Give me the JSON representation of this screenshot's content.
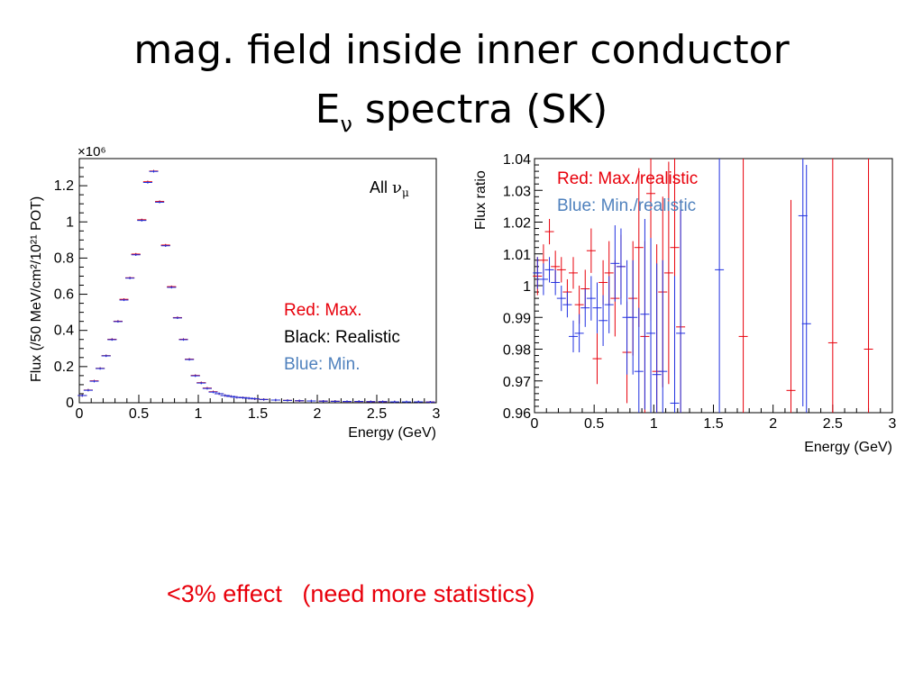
{
  "slide": {
    "title_line1": "mag. field inside inner conductor",
    "title_line2_main": "E",
    "title_line2_sub": "ν",
    "title_line2_rest": " spectra (SK)",
    "bottom_note": "<3% effect   (need more statistics)"
  },
  "colors": {
    "red": "#e8000b",
    "blue": "#1f2fe0",
    "black": "#000000",
    "lightblue": "#4f81bd"
  },
  "chart_data": [
    {
      "type": "scatter",
      "title": "",
      "xlabel": "Energy (GeV)",
      "ylabel": "Flux (/50 MeV/cm²/10²¹ POT)",
      "y_multiplier": "×10⁶",
      "xlim": [
        0,
        3
      ],
      "ylim": [
        0,
        1.35
      ],
      "xticks": [
        "0",
        "0.5",
        "1",
        "1.5",
        "2",
        "2.5",
        "3"
      ],
      "yticks": [
        "0",
        "0.2",
        "0.4",
        "0.6",
        "0.8",
        "1",
        "1.2"
      ],
      "annotation_main": "All",
      "annotation_greek": "ν",
      "annotation_sub": "μ",
      "legend": [
        {
          "text": "Red: Max.",
          "color": "red"
        },
        {
          "text": "Black: Realistic",
          "color": "black"
        },
        {
          "text": "Blue: Min.",
          "color": "lightblue"
        }
      ],
      "x": [
        0.025,
        0.075,
        0.125,
        0.175,
        0.225,
        0.275,
        0.325,
        0.375,
        0.425,
        0.475,
        0.525,
        0.575,
        0.625,
        0.675,
        0.725,
        0.775,
        0.825,
        0.875,
        0.925,
        0.975,
        1.025,
        1.075,
        1.125,
        1.175,
        1.225,
        1.275,
        1.325,
        1.375,
        1.425,
        1.475,
        1.55,
        1.65,
        1.75,
        1.85,
        1.95,
        2.05,
        2.15,
        2.25,
        2.35,
        2.45,
        2.55,
        2.65,
        2.75,
        2.85,
        2.95
      ],
      "series": [
        {
          "name": "Realistic",
          "color": "black",
          "values": [
            0.04,
            0.07,
            0.12,
            0.19,
            0.26,
            0.35,
            0.45,
            0.57,
            0.69,
            0.82,
            1.01,
            1.22,
            1.28,
            1.11,
            0.87,
            0.64,
            0.47,
            0.35,
            0.24,
            0.15,
            0.11,
            0.08,
            0.06,
            0.05,
            0.04,
            0.035,
            0.03,
            0.028,
            0.025,
            0.022,
            0.018,
            0.015,
            0.013,
            0.011,
            0.01,
            0.009,
            0.008,
            0.007,
            0.007,
            0.006,
            0.006,
            0.005,
            0.005,
            0.005,
            0.004
          ]
        },
        {
          "name": "Max.",
          "color": "red",
          "values": [
            0.04,
            0.07,
            0.121,
            0.19,
            0.26,
            0.351,
            0.451,
            0.572,
            0.691,
            0.822,
            1.012,
            1.222,
            1.281,
            1.113,
            0.872,
            0.642,
            0.471,
            0.351,
            0.241,
            0.151,
            0.111,
            0.081,
            0.061,
            0.05,
            0.04,
            0.035,
            0.03,
            0.028,
            0.025,
            0.022,
            0.018,
            0.015,
            0.013,
            0.011,
            0.01,
            0.009,
            0.008,
            0.007,
            0.007,
            0.006,
            0.006,
            0.005,
            0.005,
            0.005,
            0.004
          ]
        },
        {
          "name": "Min.",
          "color": "blue",
          "values": [
            0.04,
            0.069,
            0.119,
            0.189,
            0.259,
            0.349,
            0.449,
            0.568,
            0.689,
            0.818,
            1.008,
            1.218,
            1.279,
            1.109,
            0.868,
            0.638,
            0.469,
            0.349,
            0.239,
            0.149,
            0.109,
            0.079,
            0.059,
            0.05,
            0.04,
            0.035,
            0.03,
            0.028,
            0.025,
            0.022,
            0.018,
            0.015,
            0.013,
            0.011,
            0.01,
            0.009,
            0.008,
            0.007,
            0.007,
            0.006,
            0.006,
            0.005,
            0.005,
            0.005,
            0.004
          ]
        }
      ]
    },
    {
      "type": "scatter",
      "title": "",
      "xlabel": "Energy (GeV)",
      "ylabel": "Flux ratio",
      "xlim": [
        0,
        3
      ],
      "ylim": [
        0.96,
        1.04
      ],
      "xticks": [
        "0",
        "0.5",
        "1",
        "1.5",
        "2",
        "2.5",
        "3"
      ],
      "yticks": [
        "0.96",
        "0.97",
        "0.98",
        "0.99",
        "1",
        "1.01",
        "1.02",
        "1.03",
        "1.04"
      ],
      "legend": [
        {
          "text": "Red: Max./realistic",
          "color": "red"
        },
        {
          "text": "Blue: Min./realistic",
          "color": "lightblue"
        }
      ],
      "series": [
        {
          "name": "Max./realistic",
          "color": "red",
          "points": [
            {
              "x": 0.025,
              "y": 1.003,
              "err": 0.006
            },
            {
              "x": 0.075,
              "y": 1.008,
              "err": 0.005
            },
            {
              "x": 0.125,
              "y": 1.017,
              "err": 0.004
            },
            {
              "x": 0.175,
              "y": 1.006,
              "err": 0.005
            },
            {
              "x": 0.225,
              "y": 1.005,
              "err": 0.004
            },
            {
              "x": 0.275,
              "y": 0.998,
              "err": 0.004
            },
            {
              "x": 0.325,
              "y": 1.004,
              "err": 0.005
            },
            {
              "x": 0.375,
              "y": 0.994,
              "err": 0.006
            },
            {
              "x": 0.425,
              "y": 0.999,
              "err": 0.006
            },
            {
              "x": 0.475,
              "y": 1.011,
              "err": 0.007
            },
            {
              "x": 0.525,
              "y": 0.977,
              "err": 0.008
            },
            {
              "x": 0.575,
              "y": 1.001,
              "err": 0.007
            },
            {
              "x": 0.625,
              "y": 1.004,
              "err": 0.01
            },
            {
              "x": 0.675,
              "y": 0.996,
              "err": 0.012
            },
            {
              "x": 0.725,
              "y": 1.006,
              "err": 0.01
            },
            {
              "x": 0.775,
              "y": 0.979,
              "err": 0.016
            },
            {
              "x": 0.825,
              "y": 0.996,
              "err": 0.018
            },
            {
              "x": 0.875,
              "y": 1.012,
              "err": 0.025
            },
            {
              "x": 0.925,
              "y": 0.984,
              "err": 0.03
            },
            {
              "x": 0.975,
              "y": 1.029,
              "err": 0.04
            },
            {
              "x": 1.025,
              "y": 0.973,
              "err": 0.04
            },
            {
              "x": 1.075,
              "y": 0.998,
              "err": 0.03
            },
            {
              "x": 1.125,
              "y": 1.004,
              "err": 0.035
            },
            {
              "x": 1.175,
              "y": 1.012,
              "err": 0.04
            },
            {
              "x": 1.225,
              "y": 0.987,
              "err": 0.04
            },
            {
              "x": 1.75,
              "y": 0.984,
              "err": 0.06
            },
            {
              "x": 2.15,
              "y": 0.967,
              "err": 0.06
            },
            {
              "x": 2.5,
              "y": 0.982,
              "err": 0.07
            },
            {
              "x": 2.8,
              "y": 0.98,
              "err": 0.07
            }
          ]
        },
        {
          "name": "Min./realistic",
          "color": "blue",
          "points": [
            {
              "x": 0.025,
              "y": 1.004,
              "err": 0.005
            },
            {
              "x": 0.075,
              "y": 1.002,
              "err": 0.005
            },
            {
              "x": 0.125,
              "y": 1.005,
              "err": 0.004
            },
            {
              "x": 0.175,
              "y": 1.001,
              "err": 0.004
            },
            {
              "x": 0.225,
              "y": 0.996,
              "err": 0.004
            },
            {
              "x": 0.275,
              "y": 0.994,
              "err": 0.004
            },
            {
              "x": 0.325,
              "y": 0.984,
              "err": 0.005
            },
            {
              "x": 0.375,
              "y": 0.985,
              "err": 0.006
            },
            {
              "x": 0.425,
              "y": 0.993,
              "err": 0.006
            },
            {
              "x": 0.475,
              "y": 0.996,
              "err": 0.007
            },
            {
              "x": 0.525,
              "y": 0.993,
              "err": 0.008
            },
            {
              "x": 0.575,
              "y": 0.989,
              "err": 0.008
            },
            {
              "x": 0.625,
              "y": 0.994,
              "err": 0.009
            },
            {
              "x": 0.675,
              "y": 1.007,
              "err": 0.012
            },
            {
              "x": 0.725,
              "y": 1.006,
              "err": 0.012
            },
            {
              "x": 0.775,
              "y": 0.99,
              "err": 0.018
            },
            {
              "x": 0.825,
              "y": 0.99,
              "err": 0.018
            },
            {
              "x": 0.875,
              "y": 0.973,
              "err": 0.02
            },
            {
              "x": 0.925,
              "y": 0.991,
              "err": 0.03
            },
            {
              "x": 0.975,
              "y": 0.985,
              "err": 0.03
            },
            {
              "x": 1.025,
              "y": 0.972,
              "err": 0.035
            },
            {
              "x": 1.075,
              "y": 0.973,
              "err": 0.035
            },
            {
              "x": 1.175,
              "y": 0.963,
              "err": 0.04
            },
            {
              "x": 1.225,
              "y": 0.985,
              "err": 0.04
            },
            {
              "x": 1.55,
              "y": 1.005,
              "err": 0.05
            },
            {
              "x": 2.25,
              "y": 1.022,
              "err": 0.06
            },
            {
              "x": 2.28,
              "y": 0.988,
              "err": 0.05
            }
          ]
        }
      ]
    }
  ]
}
